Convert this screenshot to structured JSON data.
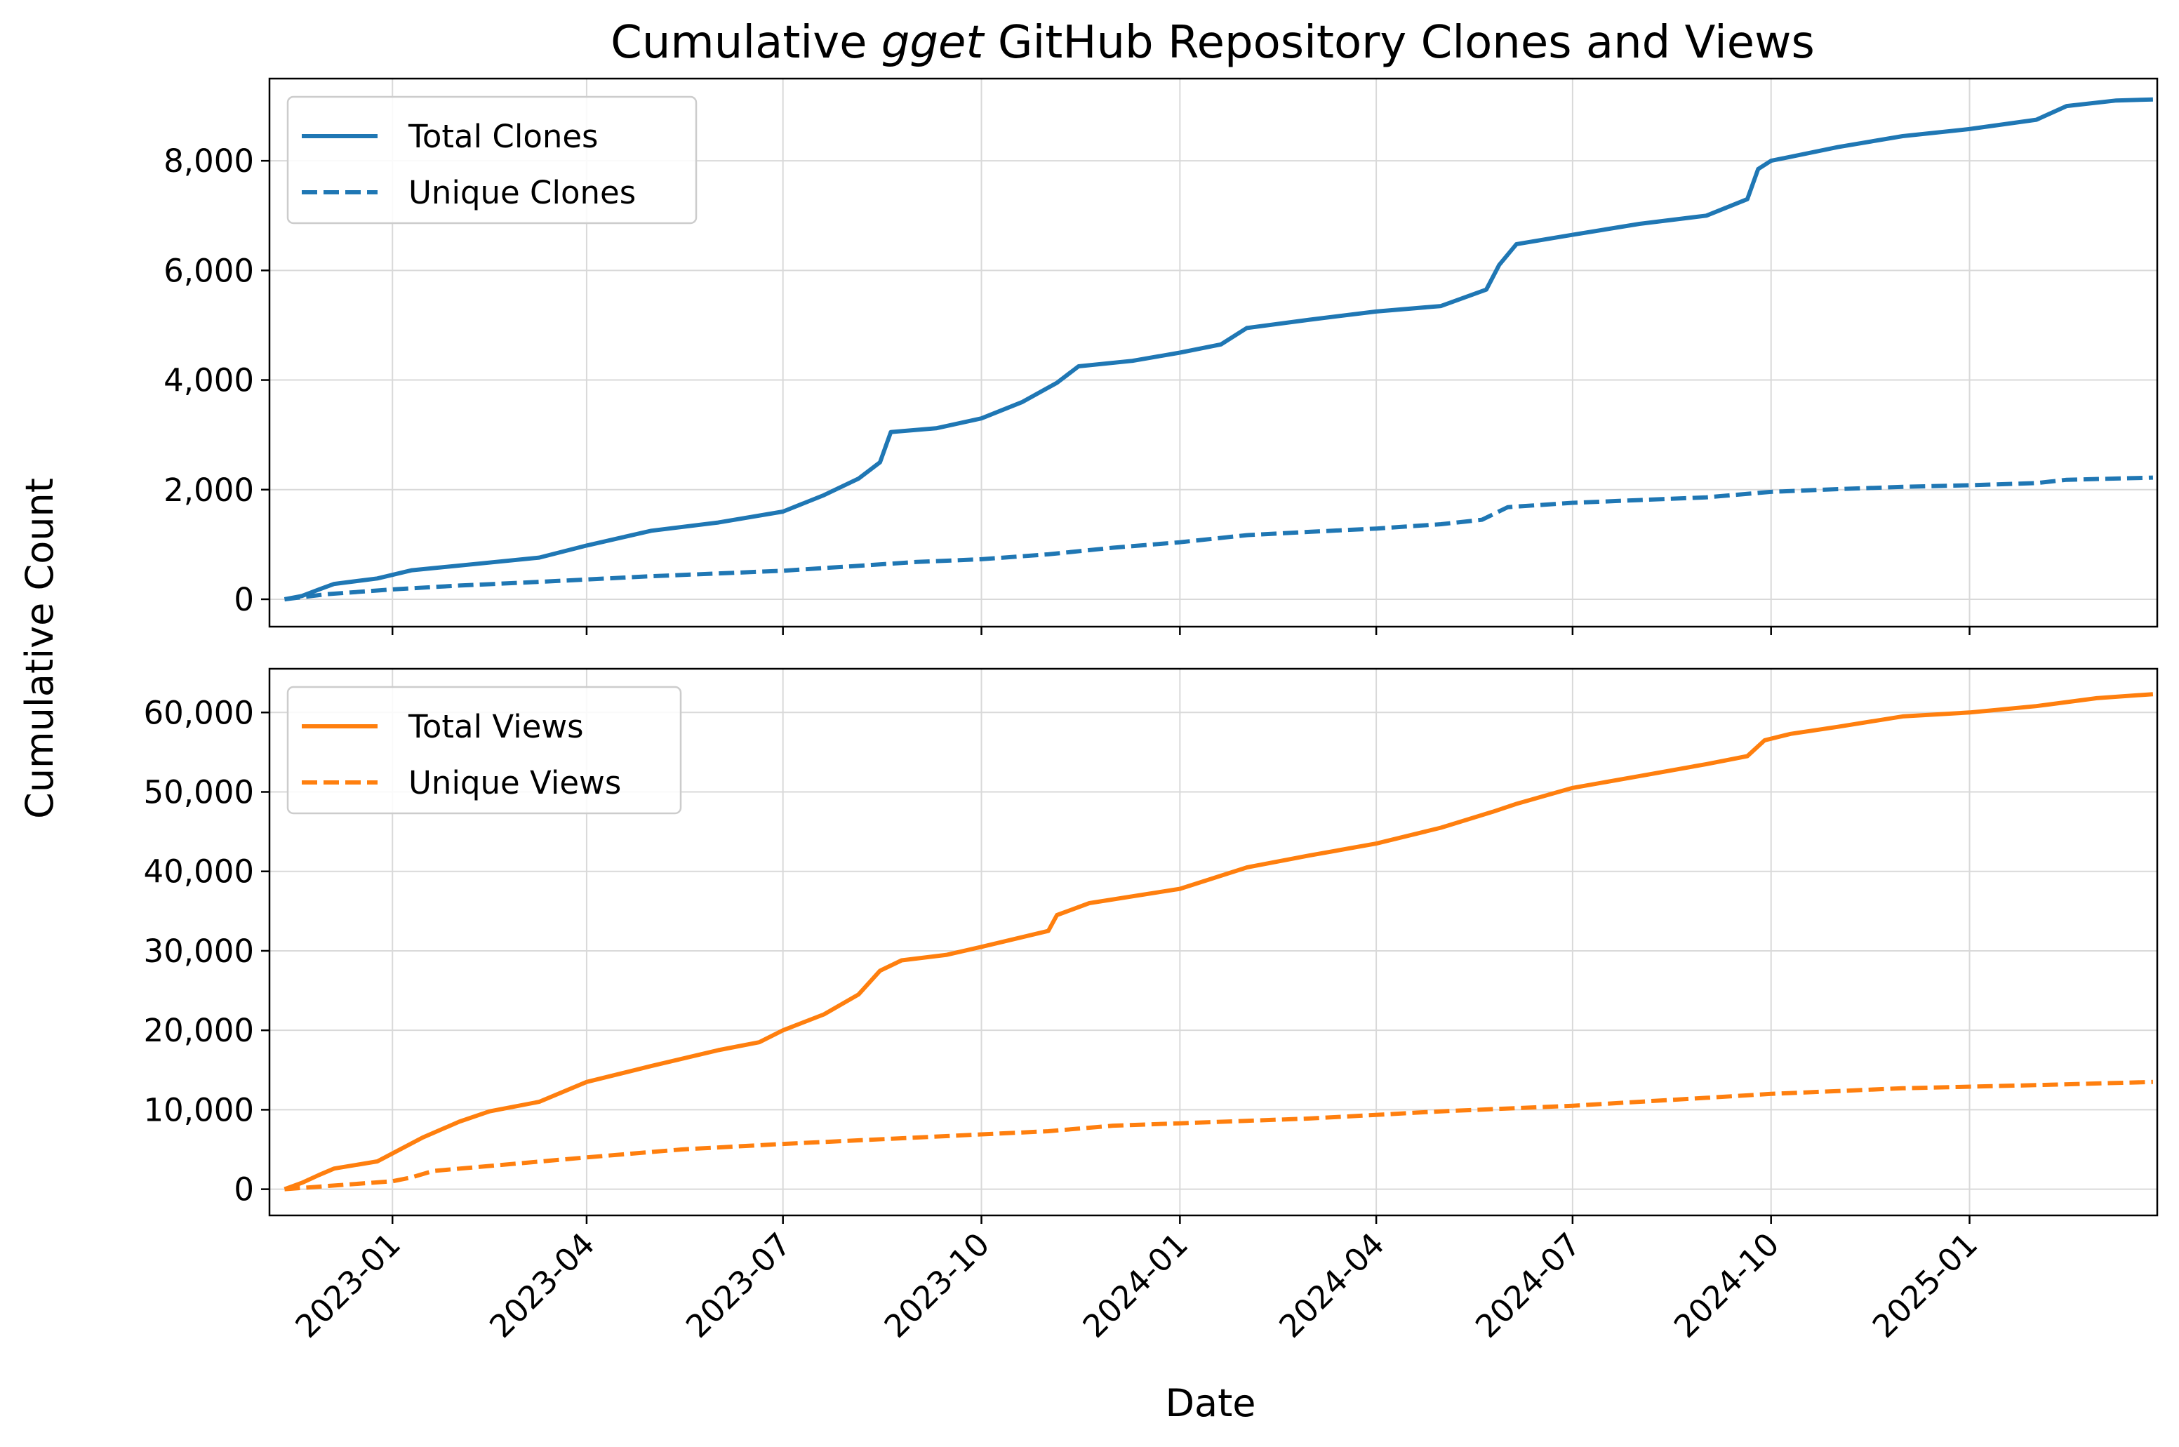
{
  "chart_data": {
    "type": "line",
    "title": {
      "prefix": "Cumulative ",
      "emphasis": "gget",
      "suffix": " GitHub Repository Clones and Views"
    },
    "xlabel": "Date",
    "ylabel": "Cumulative Count",
    "x_range": [
      "2022-11-05",
      "2025-03-29"
    ],
    "x_ticks": [
      "2023-01-01",
      "2023-04-01",
      "2023-07-01",
      "2023-10-01",
      "2024-01-01",
      "2024-04-01",
      "2024-07-01",
      "2024-10-01",
      "2025-01-01"
    ],
    "x_tick_labels": [
      "2023-01",
      "2023-04",
      "2023-07",
      "2023-10",
      "2024-01",
      "2024-04",
      "2024-07",
      "2024-10",
      "2025-01"
    ],
    "grid": true,
    "panels": [
      {
        "ylim": [
          -500,
          9500
        ],
        "y_ticks": [
          0,
          2000,
          4000,
          6000,
          8000
        ],
        "y_tick_labels": [
          "0",
          "2,000",
          "4,000",
          "6,000",
          "8,000"
        ],
        "legend_position": "top-left",
        "series": [
          {
            "name": "Total Clones",
            "color": "#1f77b4",
            "dash": "solid",
            "points": [
              [
                "2022-11-12",
                0
              ],
              [
                "2022-11-20",
                60
              ],
              [
                "2022-11-28",
                180
              ],
              [
                "2022-12-05",
                280
              ],
              [
                "2022-12-25",
                380
              ],
              [
                "2023-01-10",
                530
              ],
              [
                "2023-02-10",
                650
              ],
              [
                "2023-03-10",
                760
              ],
              [
                "2023-04-01",
                980
              ],
              [
                "2023-05-01",
                1250
              ],
              [
                "2023-06-01",
                1400
              ],
              [
                "2023-07-01",
                1600
              ],
              [
                "2023-07-20",
                1900
              ],
              [
                "2023-08-05",
                2200
              ],
              [
                "2023-08-15",
                2500
              ],
              [
                "2023-08-20",
                3050
              ],
              [
                "2023-09-10",
                3120
              ],
              [
                "2023-10-01",
                3300
              ],
              [
                "2023-10-20",
                3600
              ],
              [
                "2023-11-05",
                3950
              ],
              [
                "2023-11-15",
                4250
              ],
              [
                "2023-12-10",
                4350
              ],
              [
                "2024-01-01",
                4500
              ],
              [
                "2024-01-20",
                4650
              ],
              [
                "2024-02-01",
                4950
              ],
              [
                "2024-03-01",
                5100
              ],
              [
                "2024-04-01",
                5250
              ],
              [
                "2024-05-01",
                5350
              ],
              [
                "2024-05-22",
                5650
              ],
              [
                "2024-05-28",
                6100
              ],
              [
                "2024-06-05",
                6480
              ],
              [
                "2024-07-01",
                6650
              ],
              [
                "2024-08-01",
                6850
              ],
              [
                "2024-09-01",
                7000
              ],
              [
                "2024-09-20",
                7300
              ],
              [
                "2024-09-25",
                7850
              ],
              [
                "2024-10-01",
                8000
              ],
              [
                "2024-11-01",
                8250
              ],
              [
                "2024-12-01",
                8450
              ],
              [
                "2025-01-01",
                8580
              ],
              [
                "2025-02-01",
                8750
              ],
              [
                "2025-02-15",
                9000
              ],
              [
                "2025-03-10",
                9100
              ],
              [
                "2025-03-27",
                9120
              ]
            ]
          },
          {
            "name": "Unique Clones",
            "color": "#1f77b4",
            "dash": "dashed",
            "points": [
              [
                "2022-11-12",
                0
              ],
              [
                "2022-12-01",
                90
              ],
              [
                "2023-01-01",
                180
              ],
              [
                "2023-02-01",
                250
              ],
              [
                "2023-03-01",
                300
              ],
              [
                "2023-04-01",
                360
              ],
              [
                "2023-05-01",
                420
              ],
              [
                "2023-06-01",
                470
              ],
              [
                "2023-07-01",
                520
              ],
              [
                "2023-08-01",
                600
              ],
              [
                "2023-09-01",
                680
              ],
              [
                "2023-10-01",
                730
              ],
              [
                "2023-11-01",
                820
              ],
              [
                "2023-12-01",
                940
              ],
              [
                "2024-01-01",
                1040
              ],
              [
                "2024-02-01",
                1170
              ],
              [
                "2024-03-01",
                1230
              ],
              [
                "2024-04-01",
                1290
              ],
              [
                "2024-05-01",
                1370
              ],
              [
                "2024-05-20",
                1450
              ],
              [
                "2024-06-01",
                1680
              ],
              [
                "2024-07-01",
                1760
              ],
              [
                "2024-08-01",
                1810
              ],
              [
                "2024-09-01",
                1860
              ],
              [
                "2024-10-01",
                1960
              ],
              [
                "2024-11-01",
                2010
              ],
              [
                "2024-12-01",
                2050
              ],
              [
                "2025-01-01",
                2080
              ],
              [
                "2025-02-01",
                2120
              ],
              [
                "2025-02-15",
                2180
              ],
              [
                "2025-03-27",
                2220
              ]
            ]
          }
        ]
      },
      {
        "ylim": [
          -3300,
          65500
        ],
        "y_ticks": [
          0,
          10000,
          20000,
          30000,
          40000,
          50000,
          60000
        ],
        "y_tick_labels": [
          "0",
          "10,000",
          "20,000",
          "30,000",
          "40,000",
          "50,000",
          "60,000"
        ],
        "legend_position": "top-left",
        "series": [
          {
            "name": "Total Views",
            "color": "#ff7f0e",
            "dash": "solid",
            "points": [
              [
                "2022-11-12",
                0
              ],
              [
                "2022-11-20",
                800
              ],
              [
                "2022-11-28",
                1800
              ],
              [
                "2022-12-05",
                2600
              ],
              [
                "2022-12-25",
                3500
              ],
              [
                "2023-01-01",
                4500
              ],
              [
                "2023-01-15",
                6500
              ],
              [
                "2023-02-01",
                8500
              ],
              [
                "2023-02-15",
                9800
              ],
              [
                "2023-03-10",
                11000
              ],
              [
                "2023-04-01",
                13500
              ],
              [
                "2023-05-01",
                15500
              ],
              [
                "2023-06-01",
                17500
              ],
              [
                "2023-06-20",
                18500
              ],
              [
                "2023-07-01",
                20000
              ],
              [
                "2023-07-20",
                22000
              ],
              [
                "2023-08-05",
                24500
              ],
              [
                "2023-08-15",
                27500
              ],
              [
                "2023-08-25",
                28800
              ],
              [
                "2023-09-15",
                29500
              ],
              [
                "2023-10-01",
                30500
              ],
              [
                "2023-11-01",
                32500
              ],
              [
                "2023-11-05",
                34500
              ],
              [
                "2023-11-20",
                36000
              ],
              [
                "2024-01-01",
                37800
              ],
              [
                "2024-02-01",
                40500
              ],
              [
                "2024-03-01",
                42000
              ],
              [
                "2024-04-01",
                43500
              ],
              [
                "2024-05-01",
                45500
              ],
              [
                "2024-05-25",
                47500
              ],
              [
                "2024-06-05",
                48500
              ],
              [
                "2024-07-01",
                50500
              ],
              [
                "2024-08-01",
                52000
              ],
              [
                "2024-09-01",
                53500
              ],
              [
                "2024-09-20",
                54500
              ],
              [
                "2024-09-28",
                56500
              ],
              [
                "2024-10-10",
                57300
              ],
              [
                "2024-11-01",
                58200
              ],
              [
                "2024-12-01",
                59500
              ],
              [
                "2025-01-01",
                60000
              ],
              [
                "2025-02-01",
                60800
              ],
              [
                "2025-03-01",
                61800
              ],
              [
                "2025-03-27",
                62300
              ]
            ]
          },
          {
            "name": "Unique Views",
            "color": "#ff7f0e",
            "dash": "dashed",
            "points": [
              [
                "2022-11-12",
                0
              ],
              [
                "2023-01-01",
                1000
              ],
              [
                "2023-01-10",
                1500
              ],
              [
                "2023-01-20",
                2300
              ],
              [
                "2023-02-10",
                2800
              ],
              [
                "2023-04-01",
                4000
              ],
              [
                "2023-05-15",
                5000
              ],
              [
                "2023-07-01",
                5700
              ],
              [
                "2023-09-01",
                6500
              ],
              [
                "2023-10-01",
                6900
              ],
              [
                "2023-11-01",
                7300
              ],
              [
                "2023-12-01",
                8000
              ],
              [
                "2024-01-01",
                8300
              ],
              [
                "2024-03-01",
                8900
              ],
              [
                "2024-05-01",
                9800
              ],
              [
                "2024-07-01",
                10500
              ],
              [
                "2024-09-01",
                11500
              ],
              [
                "2024-10-01",
                12000
              ],
              [
                "2024-12-01",
                12700
              ],
              [
                "2025-02-01",
                13100
              ],
              [
                "2025-03-27",
                13500
              ]
            ]
          }
        ]
      }
    ]
  }
}
